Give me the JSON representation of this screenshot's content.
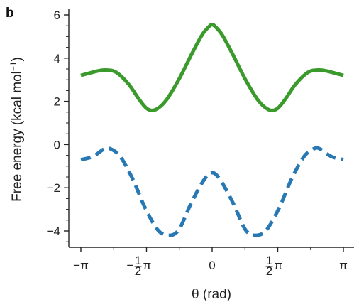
{
  "panel_label": "b",
  "chart_data": {
    "type": "line",
    "ylabel_main": "Free energy (kcal mol",
    "ylabel_sup": "−1",
    "ylabel_end": ")",
    "xlabel": "θ (rad)",
    "xlim": [
      -3.2,
      3.2
    ],
    "ylim": [
      -4.6,
      6.2
    ],
    "yticks": [
      {
        "value": -4,
        "label": "−4"
      },
      {
        "value": -2,
        "label": "−2"
      },
      {
        "value": 0,
        "label": "0"
      },
      {
        "value": 2,
        "label": "2"
      },
      {
        "value": 4,
        "label": "4"
      },
      {
        "value": 6,
        "label": "6"
      }
    ],
    "xticks": [
      {
        "value": -3.1416,
        "pre": "−",
        "num": "",
        "den": "",
        "post": "π"
      },
      {
        "value": -1.5708,
        "pre": "−",
        "num": "1",
        "den": "2",
        "post": "π"
      },
      {
        "value": 0,
        "pre": "",
        "num": "",
        "den": "",
        "post": "0"
      },
      {
        "value": 1.5708,
        "pre": "",
        "num": "1",
        "den": "2",
        "post": "π"
      },
      {
        "value": 3.1416,
        "pre": "",
        "num": "",
        "den": "",
        "post": "π"
      }
    ],
    "series": [
      {
        "color": "#3a9a2b",
        "style": "solid",
        "x": [
          -3.1416,
          -2.75,
          -2.55,
          -2.3,
          -2.0,
          -1.75,
          -1.55,
          -1.35,
          -1.1,
          -0.8,
          -0.5,
          -0.25,
          -0.08,
          0,
          0.08,
          0.25,
          0.5,
          0.8,
          1.1,
          1.35,
          1.55,
          1.75,
          2.0,
          2.3,
          2.55,
          2.75,
          3.1416
        ],
        "y": [
          3.2,
          3.4,
          3.45,
          3.35,
          2.8,
          2.1,
          1.65,
          1.62,
          2.05,
          3.0,
          4.15,
          5.05,
          5.45,
          5.55,
          5.45,
          5.05,
          4.15,
          3.0,
          2.05,
          1.62,
          1.65,
          2.1,
          2.8,
          3.35,
          3.45,
          3.4,
          3.2
        ]
      },
      {
        "color": "#2878b4",
        "style": "dashed",
        "x": [
          -3.1416,
          -2.85,
          -2.6,
          -2.45,
          -2.2,
          -1.9,
          -1.6,
          -1.3,
          -1.05,
          -0.8,
          -0.5,
          -0.2,
          0,
          0.2,
          0.5,
          0.8,
          1.05,
          1.3,
          1.6,
          1.9,
          2.2,
          2.45,
          2.6,
          2.85,
          3.1416
        ],
        "y": [
          -0.7,
          -0.55,
          -0.22,
          -0.18,
          -0.55,
          -1.6,
          -2.95,
          -3.95,
          -4.2,
          -3.95,
          -2.7,
          -1.65,
          -1.3,
          -1.65,
          -2.7,
          -3.95,
          -4.2,
          -3.95,
          -2.95,
          -1.6,
          -0.55,
          -0.18,
          -0.22,
          -0.55,
          -0.7
        ]
      }
    ]
  }
}
